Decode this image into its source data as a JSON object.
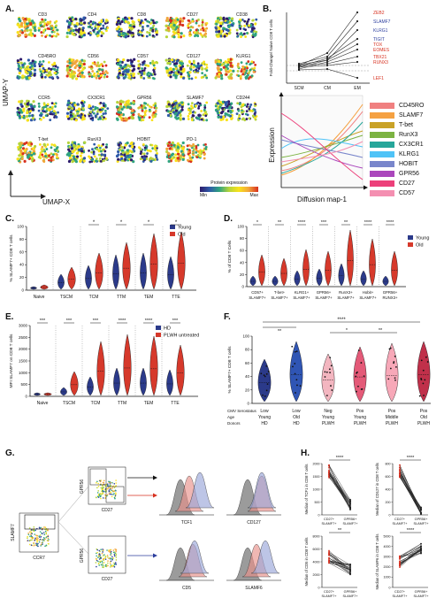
{
  "panels": {
    "A": {
      "letter": "A.",
      "markers": [
        "CD3",
        "CD4",
        "CD8",
        "CD27",
        "CD38",
        "CD45RO",
        "CD56",
        "CD57",
        "CD127",
        "KLRG1",
        "CCR5",
        "CX3CR1",
        "GPR56",
        "SLAMF7",
        "CD244",
        "T-bet",
        "RunX3",
        "HOBIT",
        "PD-1"
      ],
      "axis_y": "UMAP-Y",
      "axis_x": "UMAP-X",
      "scale_title": "Protein expression",
      "scale_min": "Min",
      "scale_max": "Max"
    },
    "B": {
      "letter": "B.",
      "ylabel": "Fold-Change/ Naive CD8 T cells",
      "xcats": [
        "SCM",
        "CM",
        "EM"
      ],
      "genes": [
        {
          "name": "ZEB2",
          "color": "#d7301f"
        },
        {
          "name": "SLAMF7",
          "color": "#2c3e9e"
        },
        {
          "name": "KLRG1",
          "color": "#2c3e9e"
        },
        {
          "name": "TIGIT",
          "color": "#2c3e9e"
        },
        {
          "name": "TOX",
          "color": "#d7301f"
        },
        {
          "name": "EOMES",
          "color": "#d7301f"
        },
        {
          "name": "TBX21",
          "color": "#d7301f"
        },
        {
          "name": "RUNX3",
          "color": "#d7301f"
        },
        {
          "name": "LEF1",
          "color": "#d7301f"
        }
      ],
      "ylabel2": "Expression",
      "xlabel2": "Diffusion map-1",
      "legend": [
        {
          "name": "CD45RO",
          "color": "#f08080"
        },
        {
          "name": "SLAMF7",
          "color": "#f5a142"
        },
        {
          "name": "T-bet",
          "color": "#c9a227"
        },
        {
          "name": "RunX3",
          "color": "#7cb342"
        },
        {
          "name": "CX3CR1",
          "color": "#26a69a"
        },
        {
          "name": "KLRG1",
          "color": "#4fc3f7"
        },
        {
          "name": "HOBIT",
          "color": "#7986cb"
        },
        {
          "name": "GPR56",
          "color": "#ab47bc"
        },
        {
          "name": "CD27",
          "color": "#ec407a"
        },
        {
          "name": "CD57",
          "color": "#f48fb1"
        }
      ]
    },
    "C": {
      "letter": "C.",
      "ylabel": "% SLAMF7+ CD8 T cells",
      "legend": [
        "Young",
        "Old"
      ],
      "categories": [
        "Naive",
        "TSCM",
        "TCM",
        "TTM",
        "TEM",
        "TTE"
      ],
      "sig": [
        "",
        "",
        "*",
        "*",
        "*",
        "*"
      ],
      "yticks": [
        "0",
        "20",
        "40",
        "60",
        "80",
        "100"
      ]
    },
    "D": {
      "letter": "D.",
      "ylabel": "% of CD8 T Cells",
      "legend": [
        "Young",
        "Old"
      ],
      "categories": [
        "CD57+ SLAMF7+",
        "T-bet+ SLAMF7+",
        "KLRG1+ SLAMF7+",
        "GPR56+ SLAMF7+",
        "RunX3+ SLAMF7+",
        "Hobit+ SLAMF7+",
        "GPR56+ RUNX3+"
      ],
      "sig": [
        "*",
        "**",
        "****",
        "***",
        "**",
        "****",
        "****"
      ],
      "yticks": [
        "0",
        "20",
        "40",
        "60",
        "80",
        "100"
      ]
    },
    "E": {
      "letter": "E.",
      "ylabel": "MFI SLAMF7 on CD8 T cells",
      "legend": [
        "HD",
        "PLWH untreated"
      ],
      "categories": [
        "Naive",
        "TSCM",
        "TCM",
        "TTM",
        "TEM",
        "TTE"
      ],
      "sig": [
        "***",
        "***",
        "***",
        "****",
        "****",
        "***"
      ],
      "yticks": [
        "0",
        "500",
        "1000",
        "1500",
        "2000",
        "2500",
        "3000"
      ]
    },
    "F": {
      "letter": "F.",
      "ylabel": "% SLAMF7+ CD8 T cells",
      "top_sig": "****",
      "row_labels": [
        "CMV Serostatus",
        "Age",
        "Donors"
      ],
      "groups": [
        {
          "l1": "Low",
          "l2": "Young",
          "l3": "HD"
        },
        {
          "l1": "Low",
          "l2": "Old",
          "l3": "HD"
        },
        {
          "l1": "Neg",
          "l2": "Young",
          "l3": "PLWH"
        },
        {
          "l1": "Pos",
          "l2": "Young",
          "l3": "PLWH"
        },
        {
          "l1": "Pos",
          "l2": "Middle",
          "l3": "PLWH"
        },
        {
          "l1": "Pos",
          "l2": "Old",
          "l3": "PLWH"
        }
      ],
      "sigs": [
        "**",
        "*",
        "**"
      ],
      "yticks": [
        "0",
        "20",
        "40",
        "60",
        "80",
        "100"
      ]
    },
    "G": {
      "letter": "G.",
      "axes": {
        "slamf7": "SLAMF7",
        "ccr7": "CCR7",
        "gpr56": "GPR56",
        "cd27": "CD27"
      },
      "histos": [
        "TCF1",
        "CD127",
        "CD5",
        "SLAMF6"
      ]
    },
    "H": {
      "letter": "H.",
      "plots": [
        {
          "ylabel": "Median of TCF1 in CD8 T cells",
          "sig": "****",
          "x1": "CD27+ SLAMF7+",
          "x2": "GPR56+ SLAMF7+",
          "yticks": [
            "0",
            "500",
            "1000",
            "1500",
            "2000"
          ]
        },
        {
          "ylabel": "Median of CD127 in CD8 T cells",
          "sig": "****",
          "x1": "CD27+ SLAMF7+",
          "x2": "GPR56+ SLAMF7+",
          "yticks": [
            "0",
            "200",
            "400",
            "600",
            "800"
          ]
        },
        {
          "ylabel": "Median of CD5 in CD8 T cells",
          "sig": "**",
          "x1": "CD27+ SLAMF7+",
          "x2": "GPR56+ SLAMF7+",
          "yticks": [
            "0",
            "2000",
            "4000",
            "6000",
            "8000"
          ]
        },
        {
          "ylabel": "Median of SLAMF6 in CD8 T cells",
          "sig": "****",
          "x1": "CD27+ SLAMF7+",
          "x2": "GPR56+ SLAMF7+",
          "yticks": [
            "0",
            "1000",
            "2000",
            "3000",
            "4000",
            "5000"
          ]
        }
      ]
    }
  },
  "colors": {
    "young": "#2b3a8a",
    "old": "#d6392b",
    "f_fill": "#2b3a8a"
  }
}
